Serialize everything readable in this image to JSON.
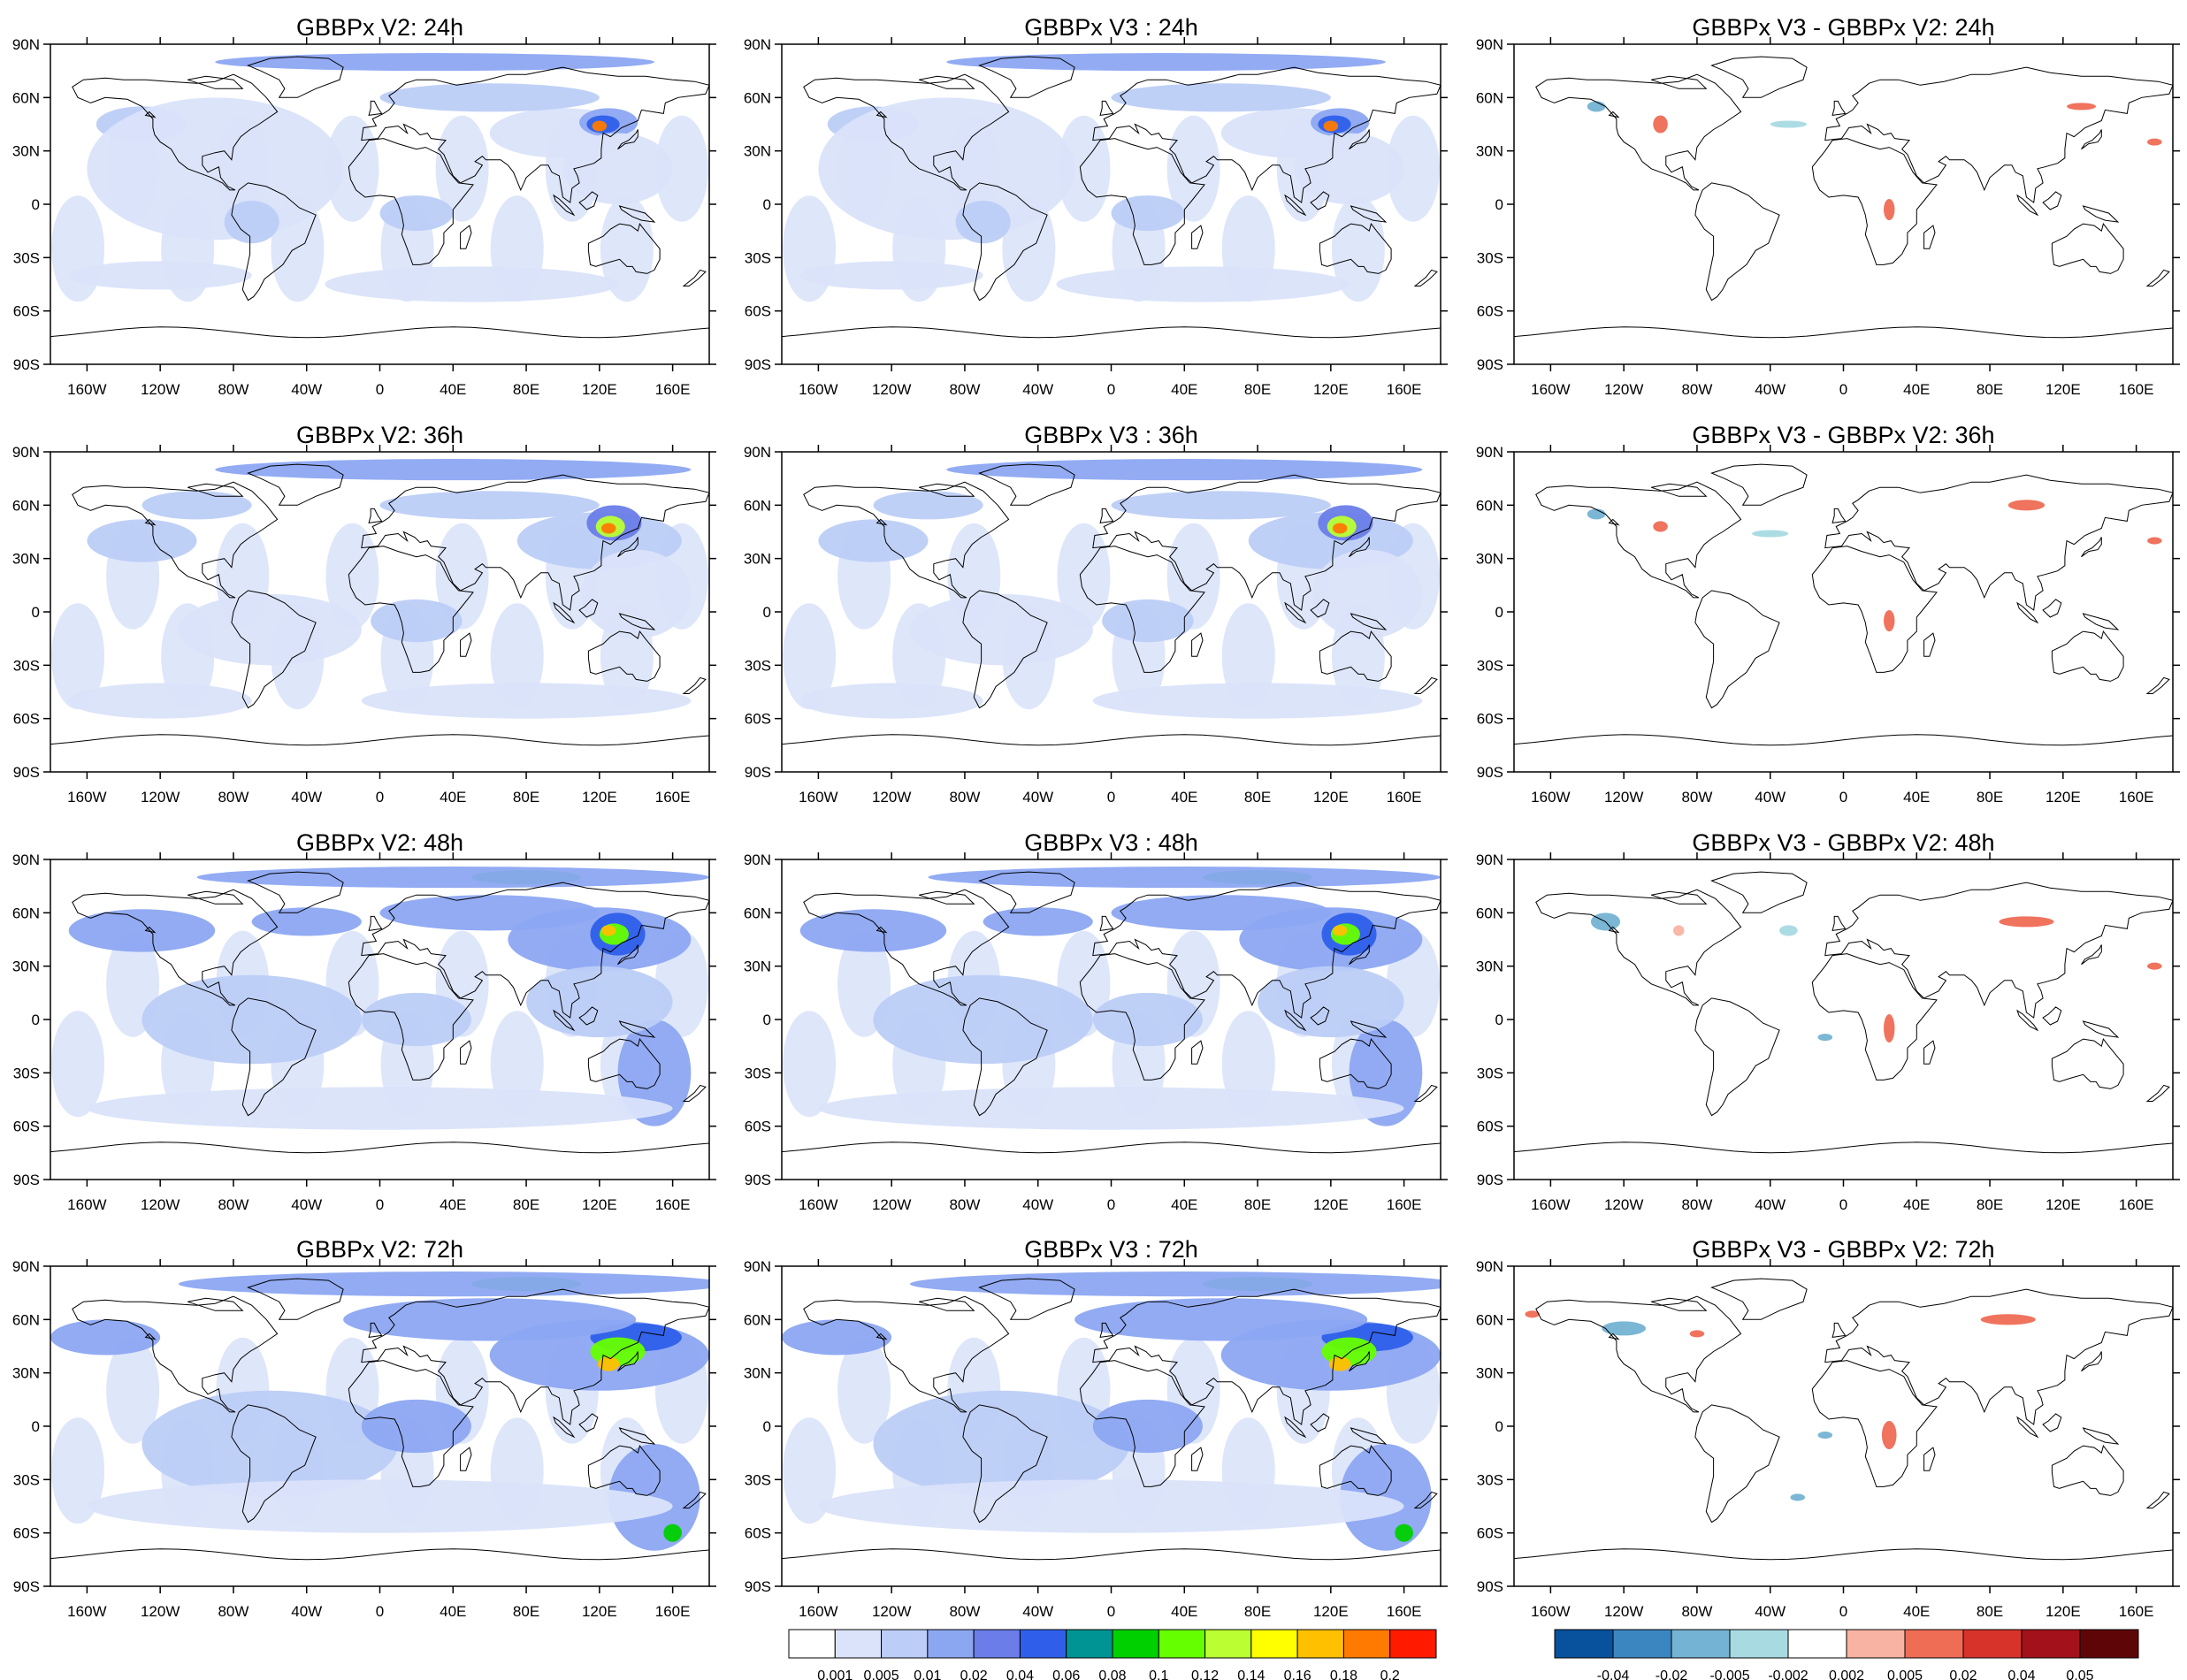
{
  "panels": [
    {
      "title": "GBBPx V2: 24h",
      "type": "abs",
      "hour": 24
    },
    {
      "title": "GBBPx V3 : 24h",
      "type": "abs",
      "hour": 24
    },
    {
      "title": "GBBPx V3 - GBBPx V2: 24h",
      "type": "diff",
      "hour": 24
    },
    {
      "title": "GBBPx V2: 36h",
      "type": "abs",
      "hour": 36
    },
    {
      "title": "GBBPx V3 : 36h",
      "type": "abs",
      "hour": 36
    },
    {
      "title": "GBBPx V3 - GBBPx V2: 36h",
      "type": "diff",
      "hour": 36
    },
    {
      "title": "GBBPx V2: 48h",
      "type": "abs",
      "hour": 48
    },
    {
      "title": "GBBPx V3 : 48h",
      "type": "abs",
      "hour": 48
    },
    {
      "title": "GBBPx V3 - GBBPx V2: 48h",
      "type": "diff",
      "hour": 48
    },
    {
      "title": "GBBPx V2: 72h",
      "type": "abs",
      "hour": 72
    },
    {
      "title": "GBBPx V3 : 72h",
      "type": "abs",
      "hour": 72
    },
    {
      "title": "GBBPx V3 - GBBPx V2: 72h",
      "type": "diff",
      "hour": 72
    }
  ],
  "lat_labels": [
    "90N",
    "60N",
    "30N",
    "0",
    "30S",
    "60S",
    "90S"
  ],
  "lat_values": [
    90,
    60,
    30,
    0,
    -30,
    -60,
    -90
  ],
  "lon_labels": [
    "160W",
    "120W",
    "80W",
    "40W",
    "0",
    "40E",
    "80E",
    "120E",
    "160E"
  ],
  "lon_values": [
    -160,
    -120,
    -80,
    -40,
    0,
    40,
    80,
    120,
    160
  ],
  "colorbar_abs": {
    "colors": [
      "#ffffff",
      "#dae3fa",
      "#bccdf7",
      "#8ca7f2",
      "#6a7de8",
      "#2f5fea",
      "#009494",
      "#00d000",
      "#66ff00",
      "#bbff33",
      "#ffff00",
      "#ffc000",
      "#ff7a00",
      "#ff1a00"
    ],
    "labels": [
      "0.001",
      "0.005",
      "0.01",
      "0.02",
      "0.04",
      "0.06",
      "0.08",
      "0.1",
      "0.12",
      "0.14",
      "0.16",
      "0.18",
      "0.2"
    ]
  },
  "colorbar_diff": {
    "colors": [
      "#08519c",
      "#3b86c1",
      "#74b3d3",
      "#a8dae2",
      "#ffffff",
      "#f9b3a2",
      "#ef6c55",
      "#d7332b",
      "#a3121b",
      "#5e0508"
    ],
    "labels": [
      "-0.04",
      "-0.02",
      "-0.005",
      "-0.002",
      "0.002",
      "0.005",
      "0.02",
      "0.04",
      "0.05"
    ]
  }
}
